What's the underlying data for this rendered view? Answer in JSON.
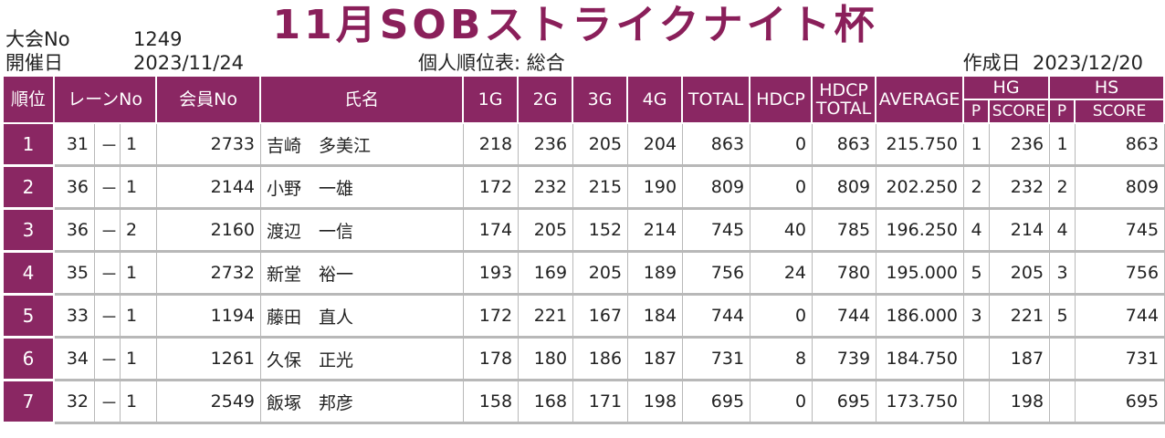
{
  "title": "11月SOBストライクナイト杯",
  "meta": {
    "tournament_no_label": "大会No",
    "tournament_no": "1249",
    "date_label": "開催日",
    "date": "2023/11/24",
    "report_title": "個人順位表: 総合",
    "created_label": "作成日",
    "created_date": "2023/12/20"
  },
  "headers": {
    "rank": "順位",
    "lane": "レーンNo",
    "member_no": "会員No",
    "name": "氏名",
    "g1": "1G",
    "g2": "2G",
    "g3": "3G",
    "g4": "4G",
    "total": "TOTAL",
    "hdcp": "HDCP",
    "hdcp_total_top": "HDCP",
    "hdcp_total_bottom": "TOTAL",
    "average": "AVERAGE",
    "hg": "HG",
    "hs": "HS",
    "p": "P",
    "score": "SCORE"
  },
  "rows": [
    {
      "rank": "1",
      "lane": "31",
      "dash": "－",
      "lane_sub": "1",
      "member_no": "2733",
      "name": "吉崎　多美江",
      "g1": "218",
      "g2": "236",
      "g3": "205",
      "g4": "204",
      "total": "863",
      "hdcp": "0",
      "hdcp_total": "863",
      "average": "215.750",
      "hg_p": "1",
      "hg_score": "236",
      "hs_p": "1",
      "hs_score": "863"
    },
    {
      "rank": "2",
      "lane": "36",
      "dash": "－",
      "lane_sub": "1",
      "member_no": "2144",
      "name": "小野　一雄",
      "g1": "172",
      "g2": "232",
      "g3": "215",
      "g4": "190",
      "total": "809",
      "hdcp": "0",
      "hdcp_total": "809",
      "average": "202.250",
      "hg_p": "2",
      "hg_score": "232",
      "hs_p": "2",
      "hs_score": "809"
    },
    {
      "rank": "3",
      "lane": "36",
      "dash": "－",
      "lane_sub": "2",
      "member_no": "2160",
      "name": "渡辺　一信",
      "g1": "174",
      "g2": "205",
      "g3": "152",
      "g4": "214",
      "total": "745",
      "hdcp": "40",
      "hdcp_total": "785",
      "average": "196.250",
      "hg_p": "4",
      "hg_score": "214",
      "hs_p": "4",
      "hs_score": "745"
    },
    {
      "rank": "4",
      "lane": "35",
      "dash": "－",
      "lane_sub": "1",
      "member_no": "2732",
      "name": "新堂　裕一",
      "g1": "193",
      "g2": "169",
      "g3": "205",
      "g4": "189",
      "total": "756",
      "hdcp": "24",
      "hdcp_total": "780",
      "average": "195.000",
      "hg_p": "5",
      "hg_score": "205",
      "hs_p": "3",
      "hs_score": "756"
    },
    {
      "rank": "5",
      "lane": "33",
      "dash": "－",
      "lane_sub": "1",
      "member_no": "1194",
      "name": "藤田　直人",
      "g1": "172",
      "g2": "221",
      "g3": "167",
      "g4": "184",
      "total": "744",
      "hdcp": "0",
      "hdcp_total": "744",
      "average": "186.000",
      "hg_p": "3",
      "hg_score": "221",
      "hs_p": "5",
      "hs_score": "744"
    },
    {
      "rank": "6",
      "lane": "34",
      "dash": "－",
      "lane_sub": "1",
      "member_no": "1261",
      "name": "久保　正光",
      "g1": "178",
      "g2": "180",
      "g3": "186",
      "g4": "187",
      "total": "731",
      "hdcp": "8",
      "hdcp_total": "739",
      "average": "184.750",
      "hg_p": "",
      "hg_score": "187",
      "hs_p": "",
      "hs_score": "731"
    },
    {
      "rank": "7",
      "lane": "32",
      "dash": "－",
      "lane_sub": "1",
      "member_no": "2549",
      "name": "飯塚　邦彦",
      "g1": "158",
      "g2": "168",
      "g3": "171",
      "g4": "198",
      "total": "695",
      "hdcp": "0",
      "hdcp_total": "695",
      "average": "173.750",
      "hg_p": "",
      "hg_score": "198",
      "hs_p": "",
      "hs_score": "695"
    }
  ]
}
